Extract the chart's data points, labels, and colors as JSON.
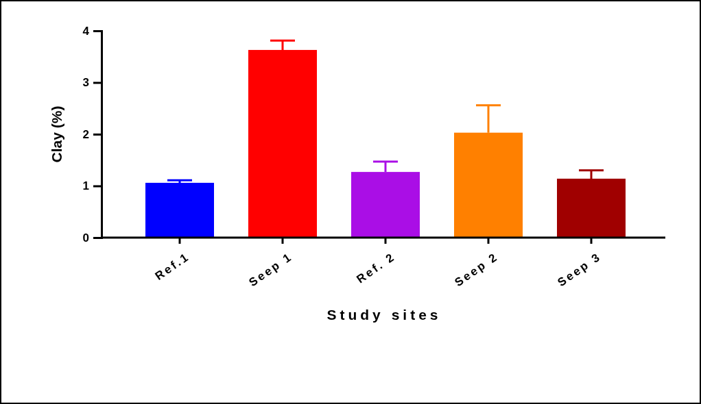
{
  "chart_data": {
    "type": "bar",
    "xlabel": "Study sites",
    "ylabel": "Clay (%)",
    "categories": [
      "Ref.1",
      "Seep 1",
      "Ref. 2",
      "Seep 2",
      "Seep 3"
    ],
    "values": [
      1.06,
      3.63,
      1.27,
      2.03,
      1.14
    ],
    "colors": [
      "#0000ff",
      "#ff0000",
      "#aa0ee6",
      "#ff8000",
      "#a00000"
    ],
    "errors": [
      [
        1.06,
        1.11
      ],
      [
        3.63,
        3.81
      ],
      [
        1.27,
        1.47
      ],
      [
        2.03,
        2.56
      ],
      [
        1.14,
        1.3
      ]
    ],
    "ylim": [
      0,
      4
    ],
    "yticks": [
      0,
      1,
      2,
      3,
      4
    ]
  }
}
